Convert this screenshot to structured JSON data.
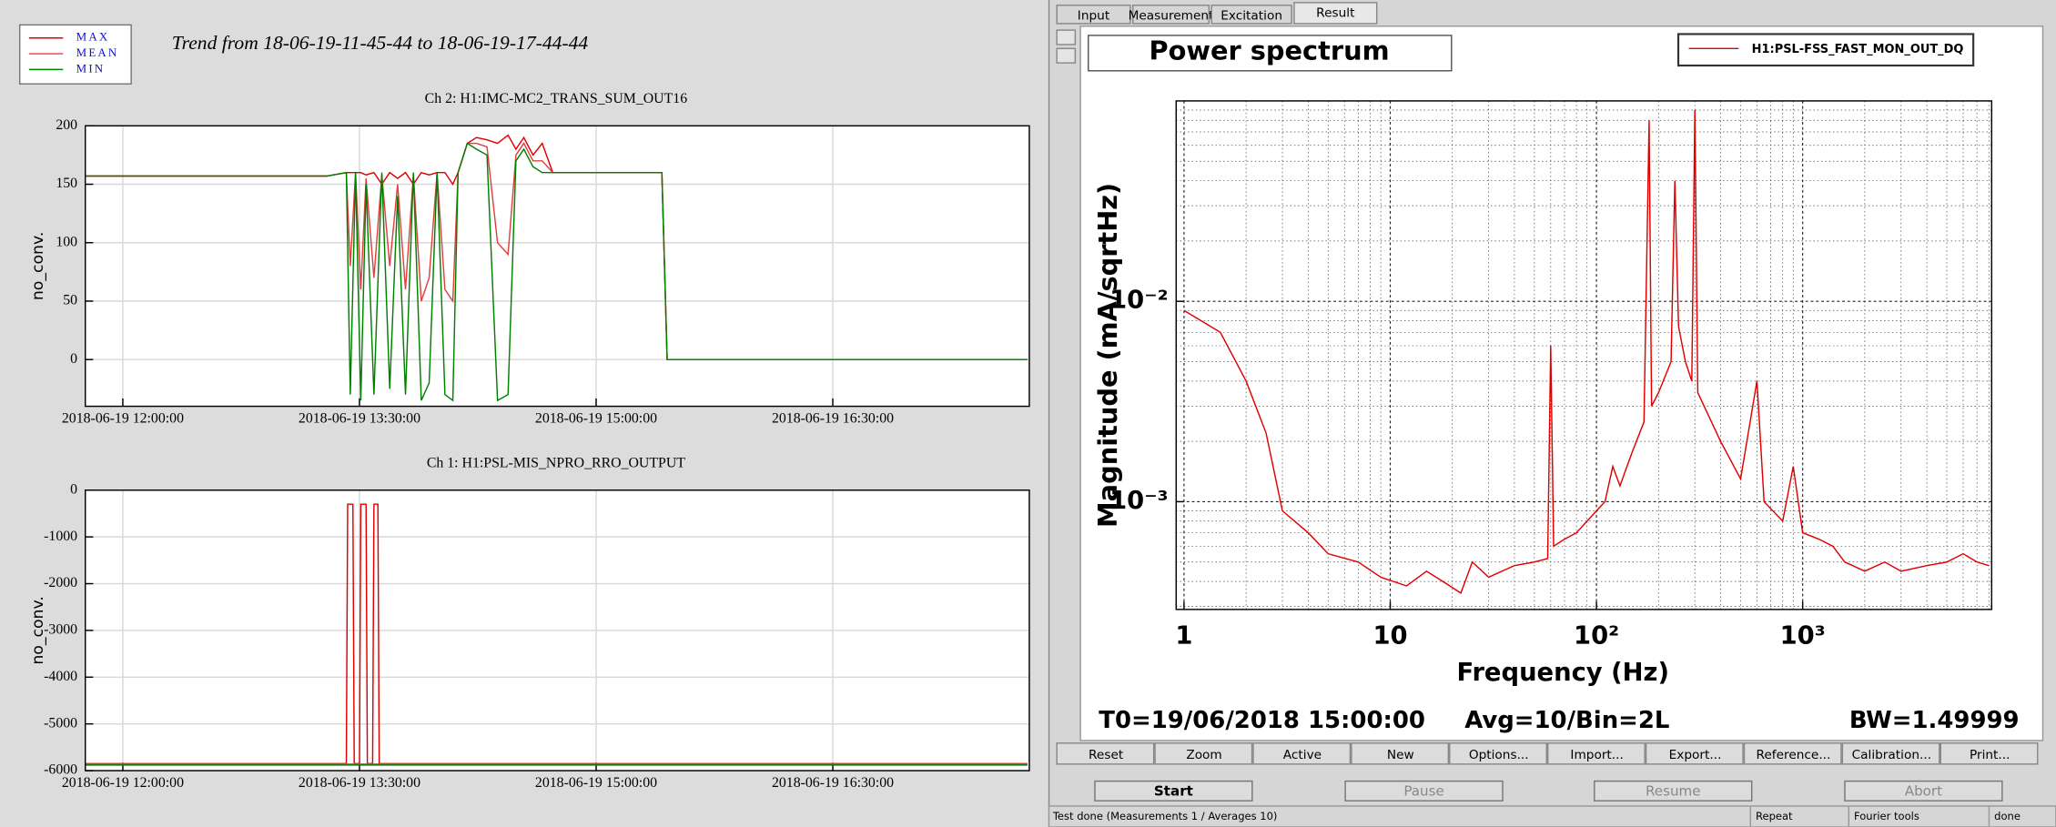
{
  "ui": {
    "trend_title": "Trend from 18-06-19-11-45-44 to 18-06-19-17-44-44",
    "tabs": [
      "Input",
      "Measurement",
      "Excitation",
      "Result"
    ],
    "footer": {
      "t0": "T0=19/06/2018 15:00:00",
      "avg": "Avg=10/Bin=2L",
      "bw": "BW=1.49999"
    },
    "buttons": [
      "Reset",
      "Zoom",
      "Active",
      "New",
      "Options...",
      "Import...",
      "Export...",
      "Reference...",
      "Calibration...",
      "Print..."
    ],
    "run_buttons": [
      "Start",
      "Pause",
      "Resume",
      "Abort"
    ],
    "status": [
      "Test done (Measurements 1 / Averages 10)",
      "Repeat",
      "Fourier tools",
      "done"
    ]
  },
  "chart_data": [
    {
      "type": "line",
      "title": "Ch 2: H1:IMC-MC2_TRANS_SUM_OUT16",
      "y_label": "no_conv.",
      "x": [
        "2018-06-19 11:46:00",
        "2018-06-19 13:17:30",
        "2018-06-19 13:25:00",
        "2018-06-19 13:26:30",
        "2018-06-19 13:28:30",
        "2018-06-19 13:30:30",
        "2018-06-19 13:32:30",
        "2018-06-19 13:35:30",
        "2018-06-19 13:38:30",
        "2018-06-19 13:41:30",
        "2018-06-19 13:44:30",
        "2018-06-19 13:47:30",
        "2018-06-19 13:50:30",
        "2018-06-19 13:53:30",
        "2018-06-19 13:56:30",
        "2018-06-19 13:59:30",
        "2018-06-19 14:02:30",
        "2018-06-19 14:05:30",
        "2018-06-19 14:07:30",
        "2018-06-19 14:11:00",
        "2018-06-19 14:14:30",
        "2018-06-19 14:18:30",
        "2018-06-19 14:22:30",
        "2018-06-19 14:26:30",
        "2018-06-19 14:29:30",
        "2018-06-19 14:32:30",
        "2018-06-19 14:36:00",
        "2018-06-19 14:39:30",
        "2018-06-19 14:43:30",
        "2018-06-19 14:47:30",
        "2018-06-19 15:08:30",
        "2018-06-19 15:25:00",
        "2018-06-19 15:27:00",
        "2018-06-19 17:44:00"
      ],
      "series": [
        {
          "name": "MAX",
          "color": "#e00000",
          "values": [
            157,
            157,
            160,
            160,
            160,
            160,
            158,
            160,
            150,
            160,
            155,
            160,
            150,
            160,
            158,
            160,
            160,
            150,
            160,
            185,
            190,
            188,
            185,
            192,
            180,
            190,
            175,
            185,
            160,
            160,
            160,
            160,
            0,
            0
          ]
        },
        {
          "name": "MEAN",
          "color": "#e04040",
          "values": [
            157,
            157,
            160,
            80,
            160,
            60,
            155,
            70,
            158,
            80,
            150,
            60,
            158,
            50,
            70,
            160,
            60,
            50,
            160,
            185,
            185,
            182,
            100,
            90,
            175,
            185,
            170,
            170,
            160,
            160,
            160,
            160,
            0,
            0
          ]
        },
        {
          "name": "MIN",
          "color": "#008000",
          "values": [
            157,
            157,
            160,
            -30,
            160,
            -35,
            150,
            -30,
            160,
            -25,
            140,
            -30,
            160,
            -35,
            -20,
            160,
            -30,
            -35,
            160,
            185,
            180,
            175,
            -35,
            -30,
            170,
            180,
            165,
            160,
            160,
            160,
            160,
            160,
            0,
            0
          ]
        }
      ],
      "xlim": [
        "2018-06-19 11:45:44",
        "2018-06-19 17:44:44"
      ],
      "xticks": [
        "2018-06-19 12:00:00",
        "2018-06-19 13:30:00",
        "2018-06-19 15:00:00",
        "2018-06-19 16:30:00"
      ],
      "ylim": [
        -40,
        200
      ],
      "yticks": [
        0,
        50,
        100,
        150,
        200
      ],
      "grid": true
    },
    {
      "type": "line",
      "title": "Ch 1: H1:PSL-MIS_NPRO_RRO_OUTPUT",
      "y_label": "no_conv.",
      "x": [
        "2018-06-19 11:46:00",
        "2018-06-19 13:25:00",
        "2018-06-19 13:25:30",
        "2018-06-19 13:27:30",
        "2018-06-19 13:28:00",
        "2018-06-19 13:30:00",
        "2018-06-19 13:30:30",
        "2018-06-19 13:32:30",
        "2018-06-19 13:33:00",
        "2018-06-19 13:35:00",
        "2018-06-19 13:35:30",
        "2018-06-19 13:37:00",
        "2018-06-19 13:37:30",
        "2018-06-19 17:44:00"
      ],
      "series": [
        {
          "color": "#e00000",
          "values": [
            -5850,
            -5850,
            -300,
            -300,
            -5850,
            -5850,
            -300,
            -300,
            -5850,
            -5850,
            -300,
            -300,
            -5850,
            -5850
          ]
        },
        {
          "color": "#e04040",
          "values": [
            -5860,
            -5860,
            -5860,
            -5860,
            -5860,
            -5860,
            -5860,
            -5860,
            -5860,
            -5860,
            -5860,
            -5860,
            -5860,
            -5860
          ]
        },
        {
          "color": "#008000",
          "values": [
            -5880,
            -5880,
            -5880,
            -5880,
            -5880,
            -5880,
            -5880,
            -5880,
            -5880,
            -5880,
            -5880,
            -5880,
            -5880,
            -5880
          ]
        }
      ],
      "xlim": [
        "2018-06-19 11:45:44",
        "2018-06-19 17:44:44"
      ],
      "xticks": [
        "2018-06-19 12:00:00",
        "2018-06-19 13:30:00",
        "2018-06-19 15:00:00",
        "2018-06-19 16:30:00"
      ],
      "ylim": [
        -6000,
        0
      ],
      "yticks": [
        -6000,
        -5000,
        -4000,
        -3000,
        -2000,
        -1000,
        0
      ],
      "grid": true
    },
    {
      "type": "line",
      "title": "Power spectrum",
      "x_label": "Frequency (Hz)",
      "y_label": "Magnitude (mA/sqrtHz)",
      "log_x": true,
      "log_y": true,
      "grid": true,
      "legend": "top-right",
      "x": [
        1,
        1.5,
        2,
        2.5,
        3,
        4,
        5,
        7,
        9,
        12,
        15,
        18,
        22,
        25,
        30,
        40,
        50,
        58,
        60,
        62,
        70,
        80,
        100,
        110,
        120,
        130,
        150,
        170,
        180,
        185,
        200,
        230,
        240,
        250,
        270,
        290,
        300,
        310,
        400,
        500,
        600,
        650,
        800,
        900,
        1000,
        1200,
        1400,
        1600,
        2000,
        2500,
        3000,
        4000,
        5000,
        6000,
        7000,
        8000
      ],
      "series": [
        {
          "name": "H1:PSL-FSS_FAST_MON_OUT_DQ",
          "color": "#e00000",
          "values": [
            0.009,
            0.007,
            0.004,
            0.0022,
            0.0009,
            0.0007,
            0.00055,
            0.0005,
            0.00042,
            0.00038,
            0.00045,
            0.0004,
            0.00035,
            0.0005,
            0.00042,
            0.00048,
            0.0005,
            0.00052,
            0.006,
            0.0006,
            0.00065,
            0.0007,
            0.0009,
            0.001,
            0.0015,
            0.0012,
            0.0018,
            0.0025,
            0.08,
            0.003,
            0.0035,
            0.005,
            0.04,
            0.0075,
            0.005,
            0.004,
            0.09,
            0.0035,
            0.002,
            0.0013,
            0.004,
            0.001,
            0.0008,
            0.0015,
            0.0007,
            0.00065,
            0.0006,
            0.0005,
            0.00045,
            0.0005,
            0.00045,
            0.00048,
            0.0005,
            0.00055,
            0.0005,
            0.00048
          ]
        }
      ],
      "xlim": [
        0.916,
        8250
      ],
      "xticks": [
        1,
        10,
        {
          "value": 100,
          "label": "10²"
        },
        {
          "value": 1000,
          "label": "10³"
        }
      ],
      "ylim": [
        0.00029,
        0.1
      ],
      "yticks": [
        {
          "value": 0.001,
          "label": "10⁻³"
        },
        {
          "value": 0.01,
          "label": "10⁻²"
        }
      ]
    }
  ]
}
